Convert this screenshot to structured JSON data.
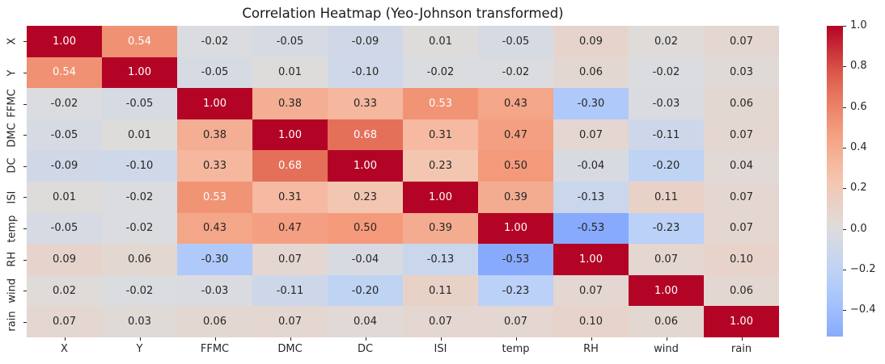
{
  "figure": {
    "title": "Correlation Heatmap (Yeo-Johnson transformed)"
  },
  "chart_data": {
    "type": "heatmap",
    "title": "Correlation Heatmap (Yeo-Johnson transformed)",
    "categories": [
      "X",
      "Y",
      "FFMC",
      "DMC",
      "DC",
      "ISI",
      "temp",
      "RH",
      "wind",
      "rain"
    ],
    "x_tick_labels": [
      "X",
      "Y",
      "FFMC",
      "DMC",
      "DC",
      "ISI",
      "temp",
      "RH",
      "wind",
      "rain"
    ],
    "y_tick_labels": [
      "X",
      "Y",
      "FFMC",
      "DMC",
      "DC",
      "ISI",
      "temp",
      "RH",
      "wind",
      "rain"
    ],
    "matrix": [
      [
        1.0,
        0.54,
        -0.02,
        -0.05,
        -0.09,
        0.01,
        -0.05,
        0.09,
        0.02,
        0.07
      ],
      [
        0.54,
        1.0,
        -0.05,
        0.01,
        -0.1,
        -0.02,
        -0.02,
        0.06,
        -0.02,
        0.03
      ],
      [
        -0.02,
        -0.05,
        1.0,
        0.38,
        0.33,
        0.53,
        0.43,
        -0.3,
        -0.03,
        0.06
      ],
      [
        -0.05,
        0.01,
        0.38,
        1.0,
        0.68,
        0.31,
        0.47,
        0.07,
        -0.11,
        0.07
      ],
      [
        -0.09,
        -0.1,
        0.33,
        0.68,
        1.0,
        0.23,
        0.5,
        -0.04,
        -0.2,
        0.04
      ],
      [
        0.01,
        -0.02,
        0.53,
        0.31,
        0.23,
        1.0,
        0.39,
        -0.13,
        0.11,
        0.07
      ],
      [
        -0.05,
        -0.02,
        0.43,
        0.47,
        0.5,
        0.39,
        1.0,
        -0.53,
        -0.23,
        0.07
      ],
      [
        0.09,
        0.06,
        -0.3,
        0.07,
        -0.04,
        -0.13,
        -0.53,
        1.0,
        0.07,
        0.1
      ],
      [
        0.02,
        -0.02,
        -0.03,
        -0.11,
        -0.2,
        0.11,
        -0.23,
        0.07,
        1.0,
        0.06
      ],
      [
        0.07,
        0.03,
        0.06,
        0.07,
        0.04,
        0.07,
        0.07,
        0.1,
        0.06,
        1.0
      ]
    ],
    "annotation_decimals": 2,
    "colormap": "coolwarm",
    "center": 0,
    "vmin": -0.53,
    "vmax": 1.0,
    "grid": false,
    "legend_position": "right-colorbar",
    "colorbar_ticks": [
      {
        "label": "1.0",
        "value": 1.0
      },
      {
        "label": "0.8",
        "value": 0.8
      },
      {
        "label": "0.6",
        "value": 0.6
      },
      {
        "label": "0.4",
        "value": 0.4
      },
      {
        "label": "0.2",
        "value": 0.2
      },
      {
        "label": "0.0",
        "value": 0.0
      },
      {
        "label": "−0.2",
        "value": -0.2
      },
      {
        "label": "−0.4",
        "value": -0.4
      }
    ],
    "colors": {
      "max_red": "#b40426",
      "mid_gray": "#dddddd",
      "min_blue_displayed": "#88aafc",
      "annotation_dark": "#262626",
      "annotation_light": "#ffffff",
      "background": "#ffffff"
    },
    "colormap_rgb_anchors": [
      [
        59,
        76,
        192
      ],
      [
        98,
        130,
        234
      ],
      [
        141,
        176,
        254
      ],
      [
        184,
        208,
        249
      ],
      [
        221,
        221,
        221
      ],
      [
        245,
        196,
        173
      ],
      [
        244,
        154,
        123
      ],
      [
        222,
        96,
        77
      ],
      [
        180,
        4,
        38
      ]
    ]
  }
}
